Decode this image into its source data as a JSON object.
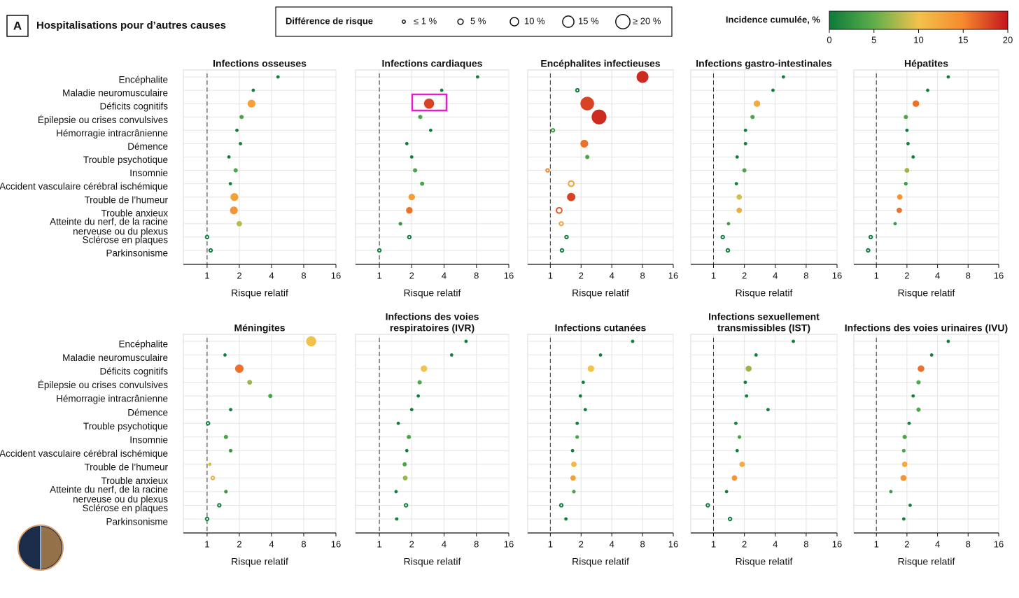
{
  "header": {
    "panel": "A",
    "title": "Hospitalisations pour d’autres causes"
  },
  "size_legend": {
    "title": "Différence de risque",
    "items": [
      {
        "value": 1,
        "label": "≤ 1 %"
      },
      {
        "value": 5,
        "label": "5 %"
      },
      {
        "value": 10,
        "label": "10 %"
      },
      {
        "value": 15,
        "label": "15 %"
      },
      {
        "value": 20,
        "label": "≥ 20 %"
      }
    ]
  },
  "colorbar": {
    "title": "Incidence cumulée, %",
    "lim": [
      0,
      20
    ],
    "ticks": [
      0,
      5,
      10,
      15,
      20
    ],
    "colors": [
      "#0b7a3a",
      "#5fae4b",
      "#f2c24c",
      "#f5892e",
      "#c3141d"
    ]
  },
  "row_labels": [
    [
      "Encéphalite"
    ],
    [
      "Maladie neuromusculaire"
    ],
    [
      "Déficits cognitifs"
    ],
    [
      "Épilepsie ou crises convulsives"
    ],
    [
      "Hémorragie intracrânienne"
    ],
    [
      "Démence"
    ],
    [
      "Trouble psychotique"
    ],
    [
      "Insomnie"
    ],
    [
      "Accident vasculaire cérébral ischémique"
    ],
    [
      "Trouble de l’humeur"
    ],
    [
      "Trouble anxieux"
    ],
    [
      "Atteinte du nerf, de la racine",
      "nerveuse ou du plexus"
    ],
    [
      "Sclérose en plaques"
    ],
    [
      "Parkinsonisme"
    ]
  ],
  "chart_data": [
    {
      "type": "dot",
      "title": [
        "Infections osseuses"
      ],
      "xlabel": "Risque relatif",
      "xlim": [
        0.6,
        16
      ],
      "xticks": [
        1,
        2,
        4,
        8,
        16
      ],
      "reference_x": 1,
      "grid": true,
      "x": [
        4.6,
        2.7,
        2.6,
        2.1,
        1.9,
        2.05,
        1.6,
        1.85,
        1.65,
        1.8,
        1.78,
        2.0,
        1.0,
        1.08
      ],
      "incidence": [
        0.5,
        0.5,
        13,
        4,
        0.5,
        0.5,
        0.5,
        4,
        0.5,
        13,
        14,
        8,
        0.5,
        0.5
      ],
      "risk_difference": [
        0.5,
        0.5,
        8,
        2,
        0.5,
        0.5,
        0.5,
        2,
        0.5,
        8,
        8,
        4,
        1,
        1
      ],
      "hollow": [
        false,
        false,
        false,
        false,
        false,
        false,
        false,
        false,
        false,
        false,
        false,
        false,
        true,
        true
      ]
    },
    {
      "type": "dot",
      "title": [
        "Infections cardiaques"
      ],
      "xlabel": "Risque relatif",
      "xlim": [
        0.6,
        16
      ],
      "xticks": [
        1,
        2,
        4,
        8,
        16
      ],
      "reference_x": 1,
      "grid": true,
      "x": [
        8.2,
        3.8,
        2.9,
        2.4,
        3.0,
        1.8,
        2.0,
        2.15,
        2.5,
        2.0,
        1.9,
        1.57,
        1.9,
        1.0
      ],
      "incidence": [
        0.5,
        0.5,
        18,
        4,
        0.5,
        0.5,
        0.5,
        4,
        4,
        13,
        16,
        3,
        0.5,
        0.5
      ],
      "risk_difference": [
        0.5,
        0.5,
        12,
        2,
        0.5,
        0.5,
        0.5,
        2,
        2,
        6,
        6,
        1,
        1,
        1
      ],
      "hollow": [
        false,
        false,
        false,
        false,
        false,
        false,
        false,
        false,
        false,
        false,
        false,
        false,
        true,
        true
      ]
    },
    {
      "type": "dot",
      "title": [
        "Encéphalites infectieuses"
      ],
      "xlabel": "Risque relatif",
      "xlim": [
        0.6,
        16
      ],
      "xticks": [
        1,
        2,
        4,
        8,
        16
      ],
      "reference_x": 1,
      "grid": true,
      "x": [
        8.0,
        1.84,
        2.3,
        3.0,
        1.06,
        2.15,
        2.3,
        0.94,
        1.6,
        1.6,
        1.22,
        1.28,
        1.44,
        1.3
      ],
      "incidence": [
        19,
        0.5,
        18,
        19,
        3,
        16,
        4,
        15,
        13,
        18,
        17,
        13,
        0.5,
        0.5
      ],
      "risk_difference": [
        15,
        1,
        18,
        20,
        1,
        8,
        2,
        1,
        5,
        9,
        5,
        2,
        1,
        1
      ],
      "hollow": [
        false,
        true,
        false,
        false,
        true,
        false,
        false,
        true,
        true,
        false,
        true,
        true,
        true,
        true
      ]
    },
    {
      "type": "dot",
      "title": [
        "Infections gastro-intestinales"
      ],
      "xlabel": "Risque relatif",
      "xlim": [
        0.6,
        16
      ],
      "xticks": [
        1,
        2,
        4,
        8,
        16
      ],
      "reference_x": 1,
      "grid": true,
      "x": [
        4.8,
        3.8,
        2.65,
        2.4,
        2.05,
        2.05,
        1.7,
        2.0,
        1.67,
        1.78,
        1.78,
        1.4,
        1.23,
        1.38
      ],
      "incidence": [
        0.5,
        0.5,
        12,
        4,
        0.5,
        0.5,
        0.5,
        4,
        0.5,
        9,
        12,
        3,
        0.5,
        0.5
      ],
      "risk_difference": [
        0.5,
        0.5,
        6,
        2,
        0.5,
        0.5,
        0.5,
        2,
        0.5,
        4,
        4,
        0.5,
        1,
        1
      ],
      "hollow": [
        false,
        false,
        false,
        false,
        false,
        false,
        false,
        false,
        false,
        false,
        false,
        false,
        true,
        true
      ]
    },
    {
      "type": "dot",
      "title": [
        "Hépatites"
      ],
      "xlabel": "Risque relatif",
      "xlim": [
        0.6,
        16
      ],
      "xticks": [
        1,
        2,
        4,
        8,
        16
      ],
      "reference_x": 1,
      "grid": true,
      "x": [
        5.1,
        3.2,
        2.45,
        1.95,
        2.0,
        2.05,
        2.3,
        2.0,
        1.95,
        1.7,
        1.68,
        1.53,
        0.88,
        0.83
      ],
      "incidence": [
        0.5,
        0.5,
        16,
        4,
        0.5,
        0.5,
        0.5,
        7,
        3,
        14,
        16,
        3,
        0.5,
        0.5
      ],
      "risk_difference": [
        0.5,
        0.5,
        6,
        2,
        0.5,
        0.5,
        0.5,
        3,
        1,
        4,
        4,
        0.5,
        1,
        1
      ],
      "hollow": [
        false,
        false,
        false,
        false,
        false,
        false,
        false,
        false,
        false,
        false,
        false,
        false,
        true,
        true
      ]
    },
    {
      "type": "dot",
      "title": [
        "Méningites"
      ],
      "xlabel": "Risque relatif",
      "xlim": [
        0.6,
        16
      ],
      "xticks": [
        1,
        2,
        4,
        8,
        16
      ],
      "reference_x": 1,
      "grid": true,
      "x": [
        9.4,
        1.47,
        2.0,
        2.5,
        3.9,
        1.66,
        1.02,
        1.5,
        1.66,
        1.06,
        1.13,
        1.5,
        1.3,
        1.0
      ],
      "incidence": [
        10,
        0.5,
        16,
        7,
        4,
        0.5,
        0.5,
        4,
        3,
        9,
        12,
        3,
        0.5,
        0.5
      ],
      "risk_difference": [
        12,
        0.5,
        9,
        3,
        2,
        0.5,
        1,
        2,
        1,
        0.5,
        1,
        1,
        1,
        1
      ],
      "hollow": [
        false,
        false,
        false,
        false,
        false,
        false,
        true,
        false,
        false,
        false,
        true,
        false,
        true,
        true
      ]
    },
    {
      "type": "dot",
      "title": [
        "Infections des voies",
        "respiratoires (IVR)"
      ],
      "xlabel": "Risque relatif",
      "xlim": [
        0.6,
        16
      ],
      "xticks": [
        1,
        2,
        4,
        8,
        16
      ],
      "reference_x": 1,
      "grid": true,
      "x": [
        6.4,
        4.7,
        2.6,
        2.37,
        2.3,
        2.0,
        1.5,
        1.88,
        1.8,
        1.72,
        1.74,
        1.43,
        1.77,
        1.45
      ],
      "incidence": [
        0.5,
        0.5,
        10,
        4,
        0.5,
        0.5,
        0.5,
        4,
        0.5,
        4,
        7,
        0.5,
        0.5,
        0.5
      ],
      "risk_difference": [
        0.5,
        0.5,
        6,
        2,
        0.5,
        0.5,
        0.5,
        2,
        0.5,
        2,
        3,
        0.5,
        1,
        0.5
      ],
      "hollow": [
        false,
        false,
        false,
        false,
        false,
        false,
        false,
        false,
        false,
        false,
        false,
        false,
        true,
        false
      ]
    },
    {
      "type": "dot",
      "title": [
        "Infections cutanées"
      ],
      "xlabel": "Risque relatif",
      "xlim": [
        0.6,
        16
      ],
      "xticks": [
        1,
        2,
        4,
        8,
        16
      ],
      "reference_x": 1,
      "grid": true,
      "x": [
        6.4,
        3.1,
        2.5,
        2.1,
        1.97,
        2.2,
        1.83,
        1.83,
        1.65,
        1.7,
        1.67,
        1.7,
        1.28,
        1.42
      ],
      "incidence": [
        0.5,
        0.5,
        10,
        0.5,
        0.5,
        0.5,
        0.5,
        4,
        0.5,
        11,
        13,
        4,
        0.5,
        0.5
      ],
      "risk_difference": [
        0.5,
        0.5,
        6,
        0.5,
        0.5,
        0.5,
        0.5,
        1,
        0.5,
        4,
        4,
        1,
        1,
        0.5
      ],
      "hollow": [
        false,
        false,
        false,
        false,
        false,
        false,
        false,
        false,
        false,
        false,
        false,
        false,
        true,
        false
      ]
    },
    {
      "type": "dot",
      "title": [
        "Infections sexuellement",
        "transmissibles (IST)"
      ],
      "xlabel": "Risque relatif",
      "xlim": [
        0.6,
        16
      ],
      "xticks": [
        1,
        2,
        4,
        8,
        16
      ],
      "reference_x": 1,
      "grid": true,
      "x": [
        6.0,
        2.6,
        2.2,
        2.04,
        2.1,
        3.4,
        1.65,
        1.79,
        1.7,
        1.9,
        1.6,
        1.34,
        0.88,
        1.45
      ],
      "incidence": [
        0.5,
        0.5,
        7,
        0.5,
        0.5,
        0.5,
        0.5,
        4,
        0.5,
        12,
        14,
        0.5,
        0.5,
        0.5
      ],
      "risk_difference": [
        0.5,
        0.5,
        5,
        0.5,
        0.5,
        0.5,
        0.5,
        1,
        0.5,
        4,
        4,
        0.5,
        1,
        1
      ],
      "hollow": [
        false,
        false,
        false,
        false,
        false,
        false,
        false,
        false,
        false,
        false,
        false,
        false,
        true,
        true
      ]
    },
    {
      "type": "dot",
      "title": [
        "Infections des voies urinaires (IVU)"
      ],
      "xlabel": "Risque relatif",
      "xlim": [
        0.6,
        16
      ],
      "xticks": [
        1,
        2,
        4,
        8,
        16
      ],
      "reference_x": 1,
      "grid": true,
      "x": [
        5.1,
        3.5,
        2.75,
        2.6,
        2.3,
        2.6,
        2.1,
        1.9,
        1.86,
        1.9,
        1.85,
        1.39,
        2.15,
        1.86
      ],
      "incidence": [
        0.5,
        0.5,
        16,
        4,
        0.5,
        4,
        0.5,
        4,
        4,
        12,
        14,
        3,
        0.5,
        0.5
      ],
      "risk_difference": [
        0.5,
        0.5,
        6,
        2,
        0.5,
        2,
        0.5,
        2,
        1,
        4,
        5,
        0.5,
        0.5,
        0.5
      ],
      "hollow": [
        false,
        false,
        false,
        false,
        false,
        false,
        false,
        false,
        false,
        false,
        false,
        false,
        false,
        false
      ]
    }
  ]
}
